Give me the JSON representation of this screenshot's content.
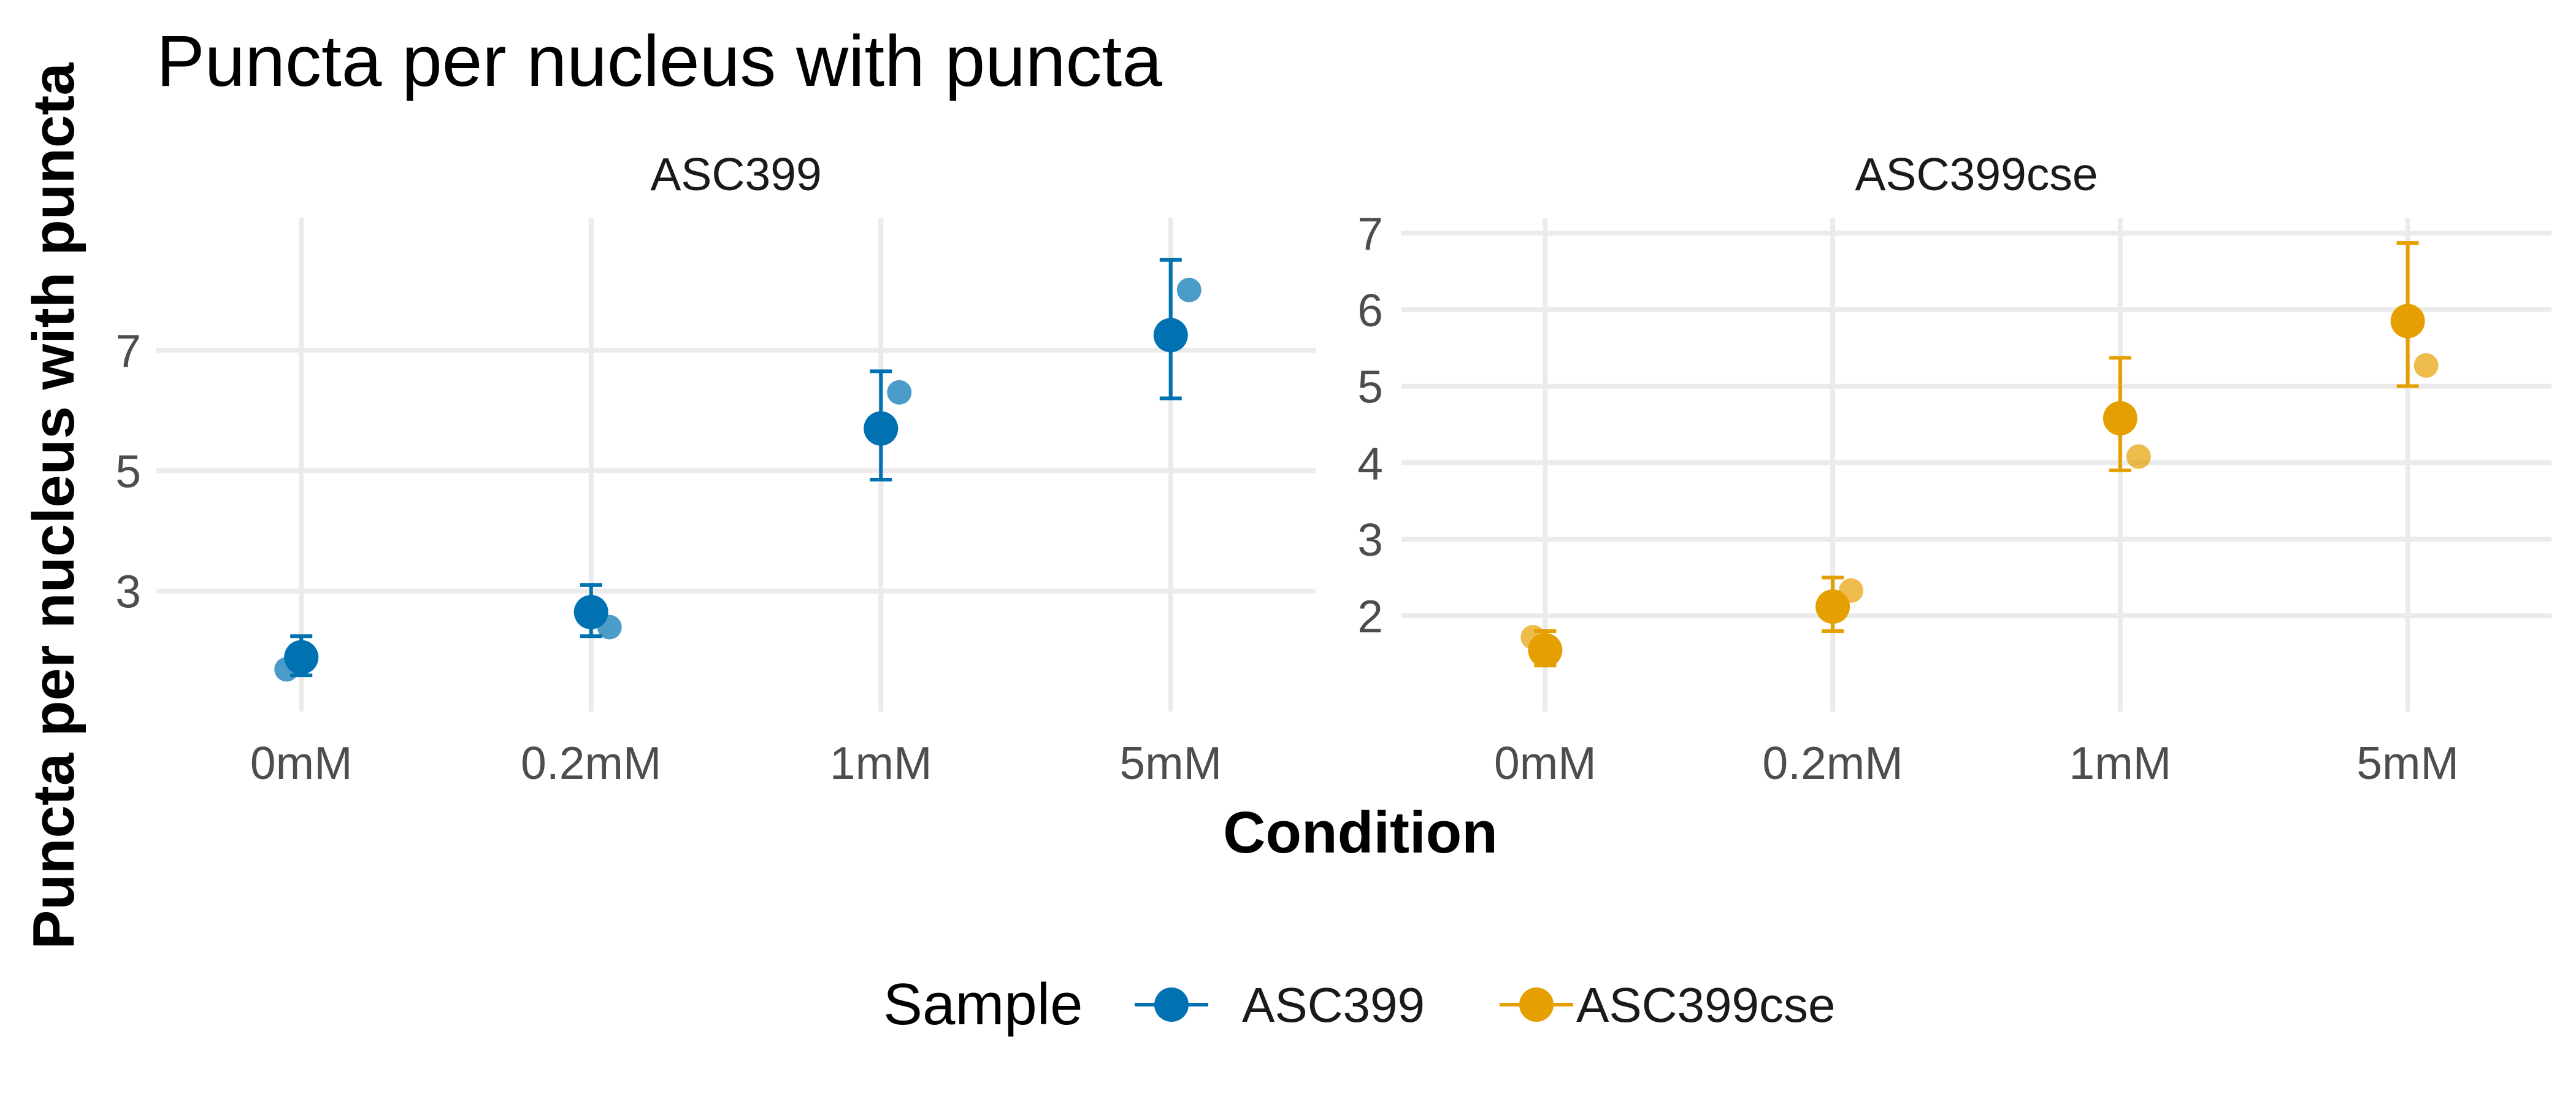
{
  "chart_data": {
    "type": "scatter",
    "title": "Puncta per nucleus with puncta",
    "xlabel": "Condition",
    "ylabel": "Puncta per nucleus with puncta",
    "categories": [
      "0mM",
      "0.2mM",
      "1mM",
      "5mM"
    ],
    "legend": {
      "title": "Sample",
      "position": "bottom"
    },
    "grid": true,
    "facets": [
      {
        "name": "ASC399",
        "color": "#0072B2",
        "ylim": [
          1.0,
          9.2
        ],
        "yticks": [
          3,
          5,
          7
        ],
        "mean": [
          1.9,
          2.65,
          5.7,
          7.25
        ],
        "error_low": [
          1.6,
          2.25,
          4.85,
          6.2
        ],
        "error_high": [
          2.25,
          3.1,
          6.65,
          8.5
        ],
        "points": [
          [
            1.7
          ],
          [
            2.4
          ],
          [
            6.3
          ],
          [
            8.0
          ]
        ]
      },
      {
        "name": "ASC399cse",
        "color": "#E69F00",
        "ylim": [
          0.75,
          7.2
        ],
        "yticks": [
          2,
          3,
          4,
          5,
          6,
          7
        ],
        "mean": [
          1.55,
          2.12,
          4.58,
          5.85
        ],
        "error_low": [
          1.35,
          1.8,
          3.9,
          5.0
        ],
        "error_high": [
          1.8,
          2.5,
          5.37,
          6.87
        ],
        "points": [
          [
            1.72
          ],
          [
            2.33
          ],
          [
            4.08
          ],
          [
            5.27
          ]
        ]
      }
    ]
  }
}
